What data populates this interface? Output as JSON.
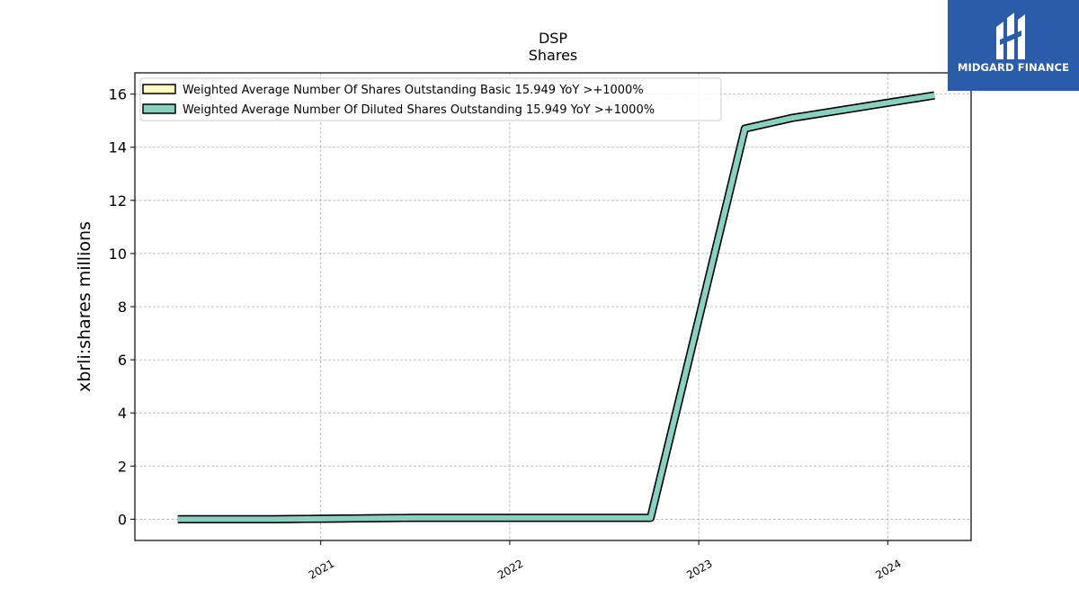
{
  "chart_data": {
    "type": "line",
    "title": "DSP",
    "subtitle": "Shares",
    "ylabel": "xbrli:shares millions",
    "xlabel": "",
    "x_ticks": [
      "2021",
      "2022",
      "2023",
      "2024"
    ],
    "y_ticks": [
      "0",
      "2",
      "4",
      "6",
      "8",
      "10",
      "12",
      "14",
      "16"
    ],
    "xlim": [
      "2020-01-08",
      "2024-06-10"
    ],
    "ylim": [
      -0.8,
      16.8
    ],
    "grid": true,
    "legend_position": "top-left",
    "series": [
      {
        "name": "Weighted Average Number Of Shares Outstanding Basic  15.949 YoY >+1000%",
        "color": "#ffffbf",
        "points": [
          {
            "x": "2020-03-31",
            "y": 0.0
          },
          {
            "x": "2020-09-30",
            "y": 0.0
          },
          {
            "x": "2021-06-30",
            "y": 0.05
          },
          {
            "x": "2022-09-30",
            "y": 0.05
          },
          {
            "x": "2023-03-31",
            "y": 14.7
          },
          {
            "x": "2023-06-30",
            "y": 15.1
          },
          {
            "x": "2024-03-31",
            "y": 15.949
          }
        ]
      },
      {
        "name": "Weighted Average Number Of Diluted Shares Outstanding  15.949 YoY >+1000%",
        "color": "#88d0c0",
        "points": [
          {
            "x": "2020-03-31",
            "y": 0.0
          },
          {
            "x": "2020-09-30",
            "y": 0.0
          },
          {
            "x": "2021-06-30",
            "y": 0.05
          },
          {
            "x": "2022-09-30",
            "y": 0.05
          },
          {
            "x": "2023-03-31",
            "y": 14.7
          },
          {
            "x": "2023-06-30",
            "y": 15.1
          },
          {
            "x": "2024-03-31",
            "y": 15.949
          }
        ]
      }
    ]
  },
  "logo": {
    "text": "MIDGARD FINANCE",
    "background": "#2a5caa"
  }
}
